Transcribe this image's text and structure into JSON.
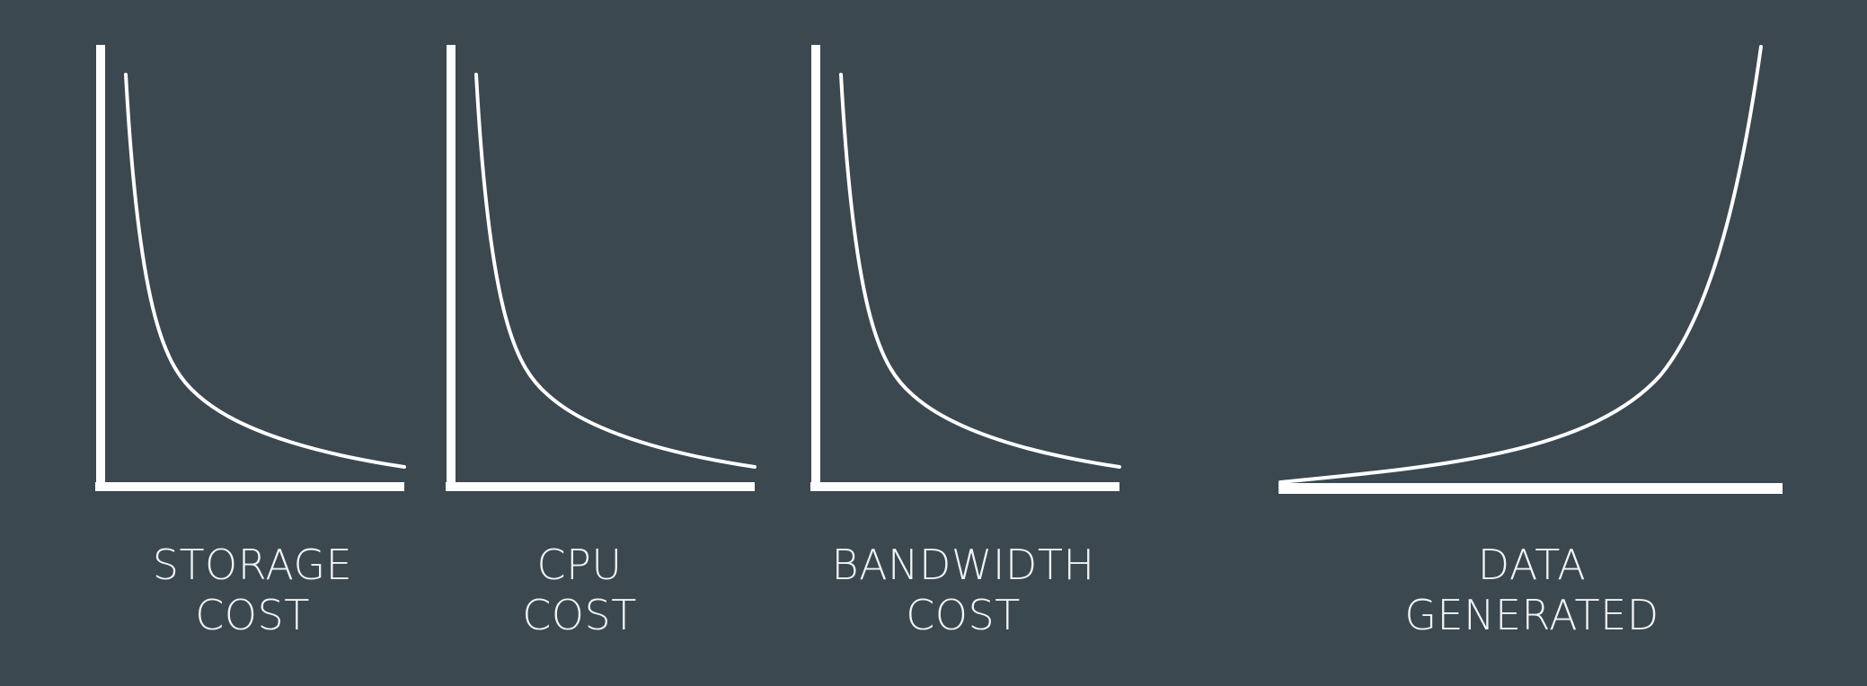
{
  "panels": [
    {
      "id": "storage",
      "line1": "STORAGE",
      "line2": "COST",
      "trend": "decreasing"
    },
    {
      "id": "cpu",
      "line1": "CPU",
      "line2": "COST",
      "trend": "decreasing"
    },
    {
      "id": "bandwidth",
      "line1": "BANDWIDTH",
      "line2": "COST",
      "trend": "decreasing"
    },
    {
      "id": "data",
      "line1": "DATA",
      "line2": "GENERATED",
      "trend": "increasing"
    }
  ],
  "colors": {
    "background": "#3b4850",
    "axis": "#ffffff",
    "curve": "#ffffff",
    "text": "#f2f4f5"
  }
}
